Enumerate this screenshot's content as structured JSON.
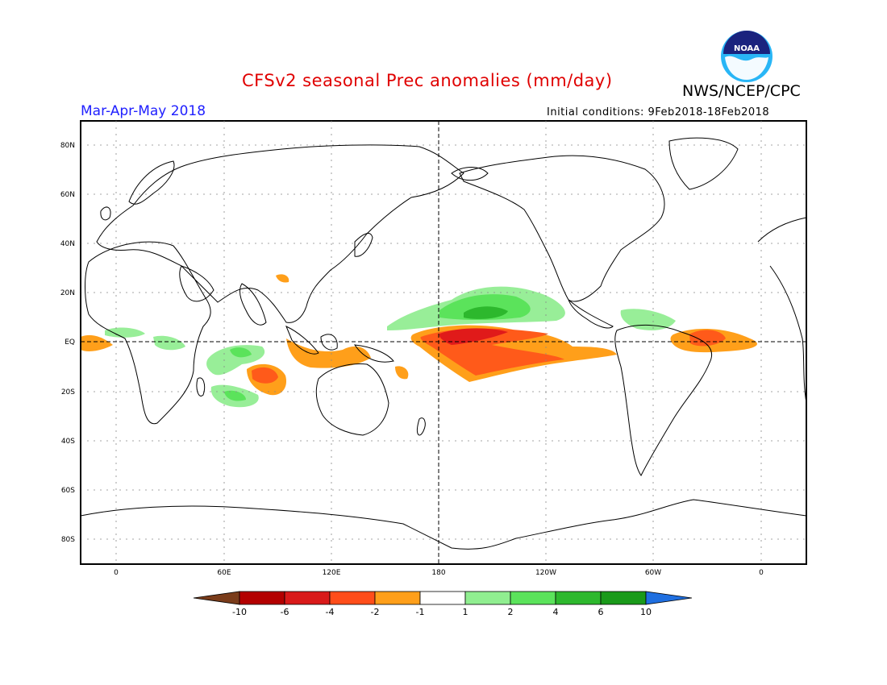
{
  "title": "CFSv2 seasonal Prec anomalies (mm/day)",
  "agency": "NWS/NCEP/CPC",
  "season": "Mar-Apr-May 2018",
  "initial_conditions": "Initial conditions: 9Feb2018-18Feb2018",
  "logo_text": "NOAA",
  "lat_labels": [
    "80N",
    "60N",
    "40N",
    "20N",
    "EQ",
    "20S",
    "40S",
    "60S",
    "80S"
  ],
  "lon_labels": [
    "0",
    "60E",
    "120E",
    "180",
    "120W",
    "60W",
    "0"
  ],
  "colorbar": {
    "labels": [
      "-10",
      "-6",
      "-4",
      "-2",
      "-1",
      "1",
      "2",
      "4",
      "6",
      "10"
    ],
    "colors": [
      "#7a3c1a",
      "#b30000",
      "#d91a1a",
      "#ff4d1a",
      "#ff9f1a",
      "#ffffff",
      "#90ee90",
      "#5be35b",
      "#2db82d",
      "#1a9a1a",
      "#1f6fe0"
    ]
  },
  "colors": {
    "title": "#e00000",
    "season": "#2020ff",
    "dry_strong": "#e01a1a",
    "dry_moderate": "#ff5a1a",
    "dry_weak": "#ff9f1a",
    "wet_weak": "#98ee98",
    "wet_moderate": "#5be35b",
    "wet_strong": "#2db82d"
  }
}
